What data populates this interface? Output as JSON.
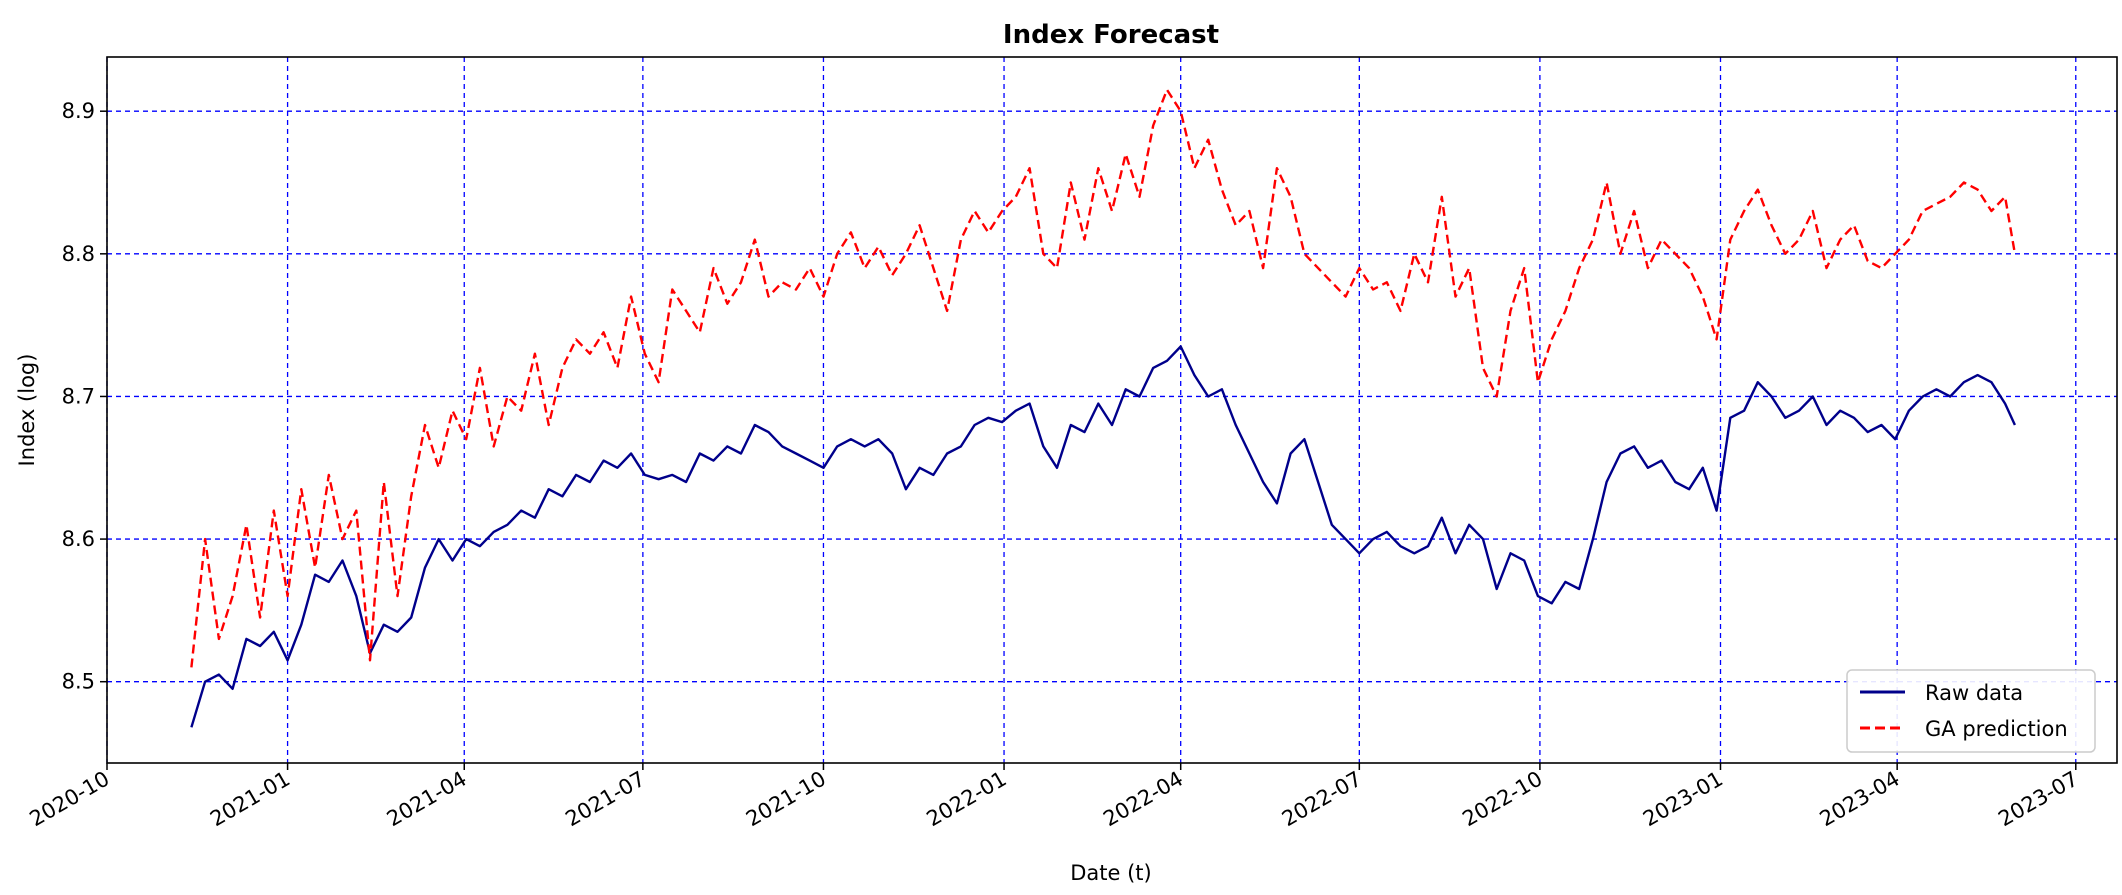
{
  "chart_data": {
    "type": "line",
    "title": "Index Forecast",
    "xlabel": "Date (t)",
    "ylabel": "Index (log)",
    "xlim": [
      "2020-10-01",
      "2023-07-22"
    ],
    "ylim": [
      8.443,
      8.938
    ],
    "x_ticks": [
      "2020-10",
      "2021-01",
      "2021-04",
      "2021-07",
      "2021-10",
      "2022-01",
      "2022-04",
      "2022-07",
      "2022-10",
      "2023-01",
      "2023-04",
      "2023-07"
    ],
    "y_ticks": [
      8.5,
      8.6,
      8.7,
      8.8,
      8.9
    ],
    "y_tick_labels": [
      "8.5",
      "8.6",
      "8.7",
      "8.8",
      "8.9"
    ],
    "grid": true,
    "grid_color": "#0000ff",
    "legend_position": "lower right",
    "series": [
      {
        "name": "Raw data",
        "color": "#00008b",
        "style": "solid",
        "x": [
          "2020-11-13",
          "2020-11-20",
          "2020-11-27",
          "2020-12-04",
          "2020-12-11",
          "2020-12-18",
          "2020-12-25",
          "2021-01-01",
          "2021-01-08",
          "2021-01-15",
          "2021-01-22",
          "2021-01-29",
          "2021-02-05",
          "2021-02-12",
          "2021-02-19",
          "2021-02-26",
          "2021-03-05",
          "2021-03-12",
          "2021-03-19",
          "2021-03-26",
          "2021-04-02",
          "2021-04-09",
          "2021-04-16",
          "2021-04-23",
          "2021-04-30",
          "2021-05-07",
          "2021-05-14",
          "2021-05-21",
          "2021-05-28",
          "2021-06-04",
          "2021-06-11",
          "2021-06-18",
          "2021-06-25",
          "2021-07-02",
          "2021-07-09",
          "2021-07-16",
          "2021-07-23",
          "2021-07-30",
          "2021-08-06",
          "2021-08-13",
          "2021-08-20",
          "2021-08-27",
          "2021-09-03",
          "2021-09-10",
          "2021-09-17",
          "2021-09-24",
          "2021-10-01",
          "2021-10-08",
          "2021-10-15",
          "2021-10-22",
          "2021-10-29",
          "2021-11-05",
          "2021-11-12",
          "2021-11-19",
          "2021-11-26",
          "2021-12-03",
          "2021-12-10",
          "2021-12-17",
          "2021-12-24",
          "2021-12-31",
          "2022-01-07",
          "2022-01-14",
          "2022-01-21",
          "2022-01-28",
          "2022-02-04",
          "2022-02-11",
          "2022-02-18",
          "2022-02-25",
          "2022-03-04",
          "2022-03-11",
          "2022-03-18",
          "2022-03-25",
          "2022-04-01",
          "2022-04-08",
          "2022-04-15",
          "2022-04-22",
          "2022-04-29",
          "2022-05-06",
          "2022-05-13",
          "2022-05-20",
          "2022-05-27",
          "2022-06-03",
          "2022-06-10",
          "2022-06-17",
          "2022-06-24",
          "2022-07-01",
          "2022-07-08",
          "2022-07-15",
          "2022-07-22",
          "2022-07-29",
          "2022-08-05",
          "2022-08-12",
          "2022-08-19",
          "2022-08-26",
          "2022-09-02",
          "2022-09-09",
          "2022-09-16",
          "2022-09-23",
          "2022-09-30",
          "2022-10-07",
          "2022-10-14",
          "2022-10-21",
          "2022-10-28",
          "2022-11-04",
          "2022-11-11",
          "2022-11-18",
          "2022-11-25",
          "2022-12-02",
          "2022-12-09",
          "2022-12-16",
          "2022-12-23",
          "2022-12-30",
          "2023-01-06",
          "2023-01-13",
          "2023-01-20",
          "2023-01-27",
          "2023-02-03",
          "2023-02-10",
          "2023-02-17",
          "2023-02-24",
          "2023-03-03",
          "2023-03-10",
          "2023-03-17",
          "2023-03-24",
          "2023-03-31",
          "2023-04-07",
          "2023-04-14",
          "2023-04-21",
          "2023-04-28",
          "2023-05-05",
          "2023-05-12",
          "2023-05-19",
          "2023-05-26",
          "2023-05-31"
        ],
        "y": [
          8.468,
          8.5,
          8.505,
          8.495,
          8.53,
          8.525,
          8.535,
          8.515,
          8.54,
          8.575,
          8.57,
          8.585,
          8.56,
          8.52,
          8.54,
          8.535,
          8.545,
          8.58,
          8.6,
          8.585,
          8.6,
          8.595,
          8.605,
          8.61,
          8.62,
          8.615,
          8.635,
          8.63,
          8.645,
          8.64,
          8.655,
          8.65,
          8.66,
          8.645,
          8.642,
          8.645,
          8.64,
          8.66,
          8.655,
          8.665,
          8.66,
          8.68,
          8.675,
          8.665,
          8.66,
          8.655,
          8.65,
          8.665,
          8.67,
          8.665,
          8.67,
          8.66,
          8.635,
          8.65,
          8.645,
          8.66,
          8.665,
          8.68,
          8.685,
          8.682,
          8.69,
          8.695,
          8.665,
          8.65,
          8.68,
          8.675,
          8.695,
          8.68,
          8.705,
          8.7,
          8.72,
          8.725,
          8.735,
          8.715,
          8.7,
          8.705,
          8.68,
          8.66,
          8.64,
          8.625,
          8.66,
          8.67,
          8.64,
          8.61,
          8.6,
          8.59,
          8.6,
          8.605,
          8.595,
          8.59,
          8.595,
          8.615,
          8.59,
          8.61,
          8.6,
          8.565,
          8.59,
          8.585,
          8.56,
          8.555,
          8.57,
          8.565,
          8.6,
          8.64,
          8.66,
          8.665,
          8.65,
          8.655,
          8.64,
          8.635,
          8.65,
          8.62,
          8.685,
          8.69,
          8.71,
          8.7,
          8.685,
          8.69,
          8.7,
          8.68,
          8.69,
          8.685,
          8.675,
          8.68,
          8.67,
          8.69,
          8.7,
          8.705,
          8.7,
          8.71,
          8.715,
          8.71,
          8.695,
          8.68
        ]
      },
      {
        "name": "GA prediction",
        "color": "#ff0000",
        "style": "dashed",
        "x": [
          "2020-11-13",
          "2020-11-20",
          "2020-11-27",
          "2020-12-04",
          "2020-12-11",
          "2020-12-18",
          "2020-12-25",
          "2021-01-01",
          "2021-01-08",
          "2021-01-15",
          "2021-01-22",
          "2021-01-29",
          "2021-02-05",
          "2021-02-12",
          "2021-02-19",
          "2021-02-26",
          "2021-03-05",
          "2021-03-12",
          "2021-03-19",
          "2021-03-26",
          "2021-04-02",
          "2021-04-09",
          "2021-04-16",
          "2021-04-23",
          "2021-04-30",
          "2021-05-07",
          "2021-05-14",
          "2021-05-21",
          "2021-05-28",
          "2021-06-04",
          "2021-06-11",
          "2021-06-18",
          "2021-06-25",
          "2021-07-02",
          "2021-07-09",
          "2021-07-16",
          "2021-07-23",
          "2021-07-30",
          "2021-08-06",
          "2021-08-13",
          "2021-08-20",
          "2021-08-27",
          "2021-09-03",
          "2021-09-10",
          "2021-09-17",
          "2021-09-24",
          "2021-10-01",
          "2021-10-08",
          "2021-10-15",
          "2021-10-22",
          "2021-10-29",
          "2021-11-05",
          "2021-11-12",
          "2021-11-19",
          "2021-11-26",
          "2021-12-03",
          "2021-12-10",
          "2021-12-17",
          "2021-12-24",
          "2021-12-31",
          "2022-01-07",
          "2022-01-14",
          "2022-01-21",
          "2022-01-28",
          "2022-02-04",
          "2022-02-11",
          "2022-02-18",
          "2022-02-25",
          "2022-03-04",
          "2022-03-11",
          "2022-03-18",
          "2022-03-25",
          "2022-04-01",
          "2022-04-08",
          "2022-04-15",
          "2022-04-22",
          "2022-04-29",
          "2022-05-06",
          "2022-05-13",
          "2022-05-20",
          "2022-05-27",
          "2022-06-03",
          "2022-06-10",
          "2022-06-17",
          "2022-06-24",
          "2022-07-01",
          "2022-07-08",
          "2022-07-15",
          "2022-07-22",
          "2022-07-29",
          "2022-08-05",
          "2022-08-12",
          "2022-08-19",
          "2022-08-26",
          "2022-09-02",
          "2022-09-09",
          "2022-09-16",
          "2022-09-23",
          "2022-09-30",
          "2022-10-07",
          "2022-10-14",
          "2022-10-21",
          "2022-10-28",
          "2022-11-04",
          "2022-11-11",
          "2022-11-18",
          "2022-11-25",
          "2022-12-02",
          "2022-12-09",
          "2022-12-16",
          "2022-12-23",
          "2022-12-30",
          "2023-01-06",
          "2023-01-13",
          "2023-01-20",
          "2023-01-27",
          "2023-02-03",
          "2023-02-10",
          "2023-02-17",
          "2023-02-24",
          "2023-03-03",
          "2023-03-10",
          "2023-03-17",
          "2023-03-24",
          "2023-03-31",
          "2023-04-07",
          "2023-04-14",
          "2023-04-21",
          "2023-04-28",
          "2023-05-05",
          "2023-05-12",
          "2023-05-19",
          "2023-05-26",
          "2023-05-31"
        ],
        "y": [
          8.51,
          8.6,
          8.53,
          8.56,
          8.61,
          8.545,
          8.62,
          8.56,
          8.635,
          8.58,
          8.645,
          8.6,
          8.62,
          8.515,
          8.64,
          8.56,
          8.63,
          8.68,
          8.65,
          8.69,
          8.67,
          8.72,
          8.665,
          8.7,
          8.69,
          8.73,
          8.68,
          8.72,
          8.74,
          8.73,
          8.745,
          8.72,
          8.77,
          8.73,
          8.71,
          8.775,
          8.76,
          8.745,
          8.79,
          8.765,
          8.78,
          8.81,
          8.77,
          8.78,
          8.775,
          8.79,
          8.77,
          8.8,
          8.815,
          8.79,
          8.805,
          8.785,
          8.8,
          8.82,
          8.79,
          8.76,
          8.81,
          8.83,
          8.815,
          8.83,
          8.84,
          8.86,
          8.8,
          8.79,
          8.85,
          8.81,
          8.86,
          8.83,
          8.87,
          8.84,
          8.89,
          8.915,
          8.9,
          8.86,
          8.88,
          8.845,
          8.82,
          8.83,
          8.79,
          8.86,
          8.84,
          8.8,
          8.79,
          8.78,
          8.77,
          8.79,
          8.775,
          8.78,
          8.76,
          8.8,
          8.78,
          8.84,
          8.77,
          8.79,
          8.72,
          8.7,
          8.76,
          8.79,
          8.71,
          8.74,
          8.76,
          8.79,
          8.81,
          8.85,
          8.8,
          8.83,
          8.79,
          8.81,
          8.8,
          8.79,
          8.77,
          8.74,
          8.81,
          8.83,
          8.845,
          8.82,
          8.8,
          8.81,
          8.83,
          8.79,
          8.81,
          8.82,
          8.795,
          8.79,
          8.8,
          8.81,
          8.83,
          8.835,
          8.84,
          8.85,
          8.845,
          8.83,
          8.84,
          8.8
        ]
      }
    ]
  }
}
